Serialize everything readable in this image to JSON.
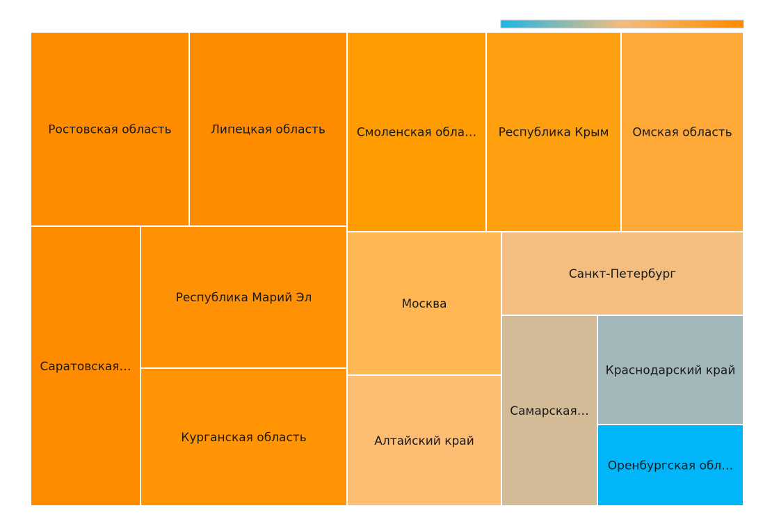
{
  "chart_data": {
    "type": "treemap",
    "colorscale": [
      "#1cb6e8",
      "#f5bd7c",
      "#ff8a00"
    ],
    "legend": "top-right",
    "items": [
      {
        "label": "Ростовская область",
        "display": "Ростовская область",
        "color": "#ff8c00"
      },
      {
        "label": "Липецкая область",
        "display": "Липецкая область",
        "color": "#ff8b00"
      },
      {
        "label": "Смоленская область",
        "display": "Смоленская обла…",
        "color": "#ff9c02"
      },
      {
        "label": "Республика Крым",
        "display": "Республика Крым",
        "color": "#ffa010"
      },
      {
        "label": "Омская область",
        "display": "Омская область",
        "color": "#ffaa38"
      },
      {
        "label": "Саратовская область",
        "display": "Саратовская…",
        "color": "#ff8c00"
      },
      {
        "label": "Республика Марий Эл",
        "display": "Республика Марий Эл",
        "color": "#ff9204"
      },
      {
        "label": "Курганская область",
        "display": "Курганская область",
        "color": "#ff9405"
      },
      {
        "label": "Москва",
        "display": "Москва",
        "color": "#ffb755"
      },
      {
        "label": "Алтайский край",
        "display": "Алтайский край",
        "color": "#fdbd73"
      },
      {
        "label": "Санкт-Петербург",
        "display": "Санкт-Петербург",
        "color": "#f3be7f"
      },
      {
        "label": "Самарская область",
        "display": "Самарская…",
        "color": "#d3bb97"
      },
      {
        "label": "Краснодарский край",
        "display": "Краснодарский край",
        "color": "#a3b8ba"
      },
      {
        "label": "Оренбургская область",
        "display": "Оренбургская обл…",
        "color": "#00b6f9"
      }
    ]
  }
}
